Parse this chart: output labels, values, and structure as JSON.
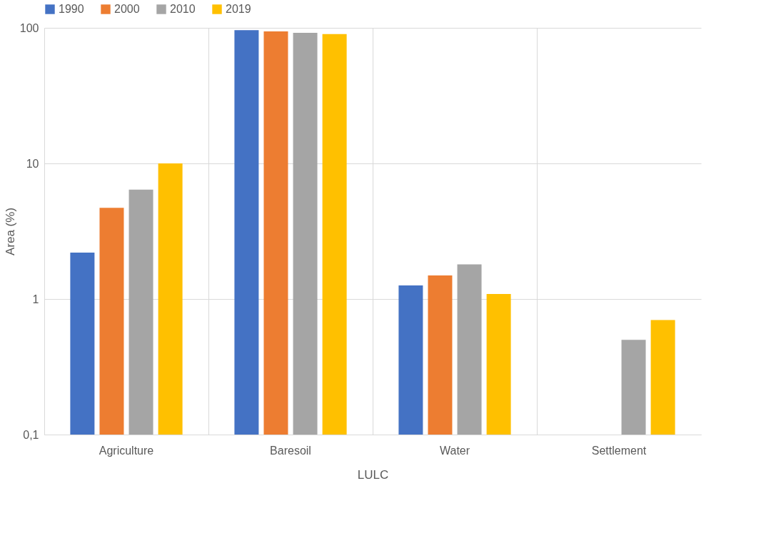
{
  "chart_data": {
    "type": "bar",
    "xlabel": "LULC",
    "ylabel": "Area (%)",
    "categories": [
      "Agriculture",
      "Baresoil",
      "Water",
      "Settlement"
    ],
    "series": [
      {
        "name": "1990",
        "color": "#4472c4",
        "values": [
          2.2,
          96,
          1.26,
          null
        ]
      },
      {
        "name": "2000",
        "color": "#ed7d31",
        "values": [
          4.7,
          94,
          1.49,
          null
        ]
      },
      {
        "name": "2010",
        "color": "#a5a5a5",
        "values": [
          6.4,
          92,
          1.8,
          0.5
        ]
      },
      {
        "name": "2019",
        "color": "#ffc000",
        "values": [
          10,
          90,
          1.09,
          0.7
        ]
      }
    ],
    "log": true,
    "ylim": [
      0.1,
      100
    ],
    "yticks": [
      {
        "value": 0.1,
        "label": "0,1"
      },
      1,
      10,
      100
    ],
    "grid": true,
    "legend": "top"
  }
}
